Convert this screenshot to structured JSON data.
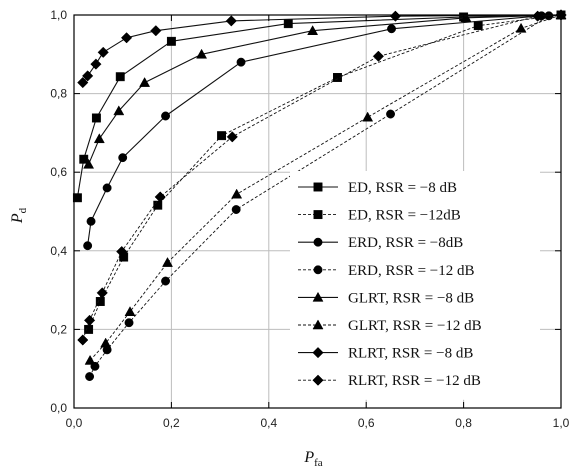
{
  "chart_data": {
    "type": "line",
    "xlabel": {
      "main": "P",
      "sub": "fa"
    },
    "ylabel": {
      "main": "P",
      "sub": "d"
    },
    "xlim": [
      0.0,
      1.0
    ],
    "ylim": [
      0.0,
      1.0
    ],
    "x_ticks": [
      0.0,
      0.2,
      0.4,
      0.6,
      0.8,
      1.0
    ],
    "y_ticks": [
      0.0,
      0.2,
      0.4,
      0.6,
      0.8,
      1.0
    ],
    "x_tick_labels": [
      "0,0",
      "0,2",
      "0,4",
      "0,6",
      "0,8",
      "1,0"
    ],
    "y_tick_labels": [
      "0,0",
      "0,2",
      "0,4",
      "0,6",
      "0,8",
      "1,0"
    ],
    "grid": true,
    "legend_position": "bottom-right",
    "series": [
      {
        "name": "ED, RSR = −8 dB",
        "marker": "square",
        "line": "solid",
        "x": [
          0.007,
          0.02,
          0.046,
          0.095,
          0.2,
          0.44,
          0.8,
          1.0
        ],
        "y": [
          0.535,
          0.633,
          0.738,
          0.843,
          0.933,
          0.978,
          0.995,
          1.0
        ]
      },
      {
        "name": "ED, RSR = −12dB",
        "marker": "square",
        "line": "dashed",
        "x": [
          0.03,
          0.054,
          0.102,
          0.172,
          0.303,
          0.541,
          0.83,
          1.0
        ],
        "y": [
          0.2,
          0.271,
          0.384,
          0.516,
          0.693,
          0.841,
          0.973,
          1.0
        ]
      },
      {
        "name": "ERD, RSR = −8dB",
        "marker": "circle",
        "line": "solid",
        "x": [
          0.028,
          0.035,
          0.068,
          0.1,
          0.188,
          0.343,
          0.652,
          0.96,
          1.0
        ],
        "y": [
          0.413,
          0.475,
          0.56,
          0.637,
          0.743,
          0.88,
          0.965,
          0.998,
          1.0
        ]
      },
      {
        "name": "ERD, RSR = −12 dB",
        "marker": "circle",
        "line": "dashed",
        "x": [
          0.032,
          0.043,
          0.068,
          0.113,
          0.188,
          0.333,
          0.65,
          0.975,
          1.0
        ],
        "y": [
          0.08,
          0.106,
          0.148,
          0.217,
          0.323,
          0.505,
          0.748,
          0.998,
          1.0
        ]
      },
      {
        "name": "GLRT, RSR = −8 dB",
        "marker": "triangle",
        "line": "solid",
        "x": [
          0.03,
          0.052,
          0.092,
          0.145,
          0.262,
          0.49,
          0.805,
          1.0
        ],
        "y": [
          0.62,
          0.685,
          0.756,
          0.828,
          0.9,
          0.96,
          0.993,
          1.0
        ]
      },
      {
        "name": "GLRT, RSR = −12 dB",
        "marker": "triangle",
        "line": "dashed",
        "x": [
          0.033,
          0.065,
          0.115,
          0.192,
          0.334,
          0.603,
          0.918,
          1.0
        ],
        "y": [
          0.121,
          0.165,
          0.245,
          0.37,
          0.544,
          0.74,
          0.966,
          1.0
        ]
      },
      {
        "name": "RLRT, RSR = −8 dB",
        "marker": "diamond",
        "line": "solid",
        "x": [
          0.018,
          0.028,
          0.045,
          0.06,
          0.108,
          0.168,
          0.323,
          0.66,
          1.0
        ],
        "y": [
          0.828,
          0.845,
          0.875,
          0.905,
          0.942,
          0.96,
          0.985,
          0.997,
          1.0
        ]
      },
      {
        "name": "RLRT, RSR = −12 dB",
        "marker": "diamond",
        "line": "dashed",
        "x": [
          0.018,
          0.032,
          0.058,
          0.098,
          0.177,
          0.325,
          0.625,
          0.952,
          1.0
        ],
        "y": [
          0.173,
          0.223,
          0.293,
          0.398,
          0.537,
          0.69,
          0.895,
          0.997,
          1.0
        ]
      }
    ]
  }
}
